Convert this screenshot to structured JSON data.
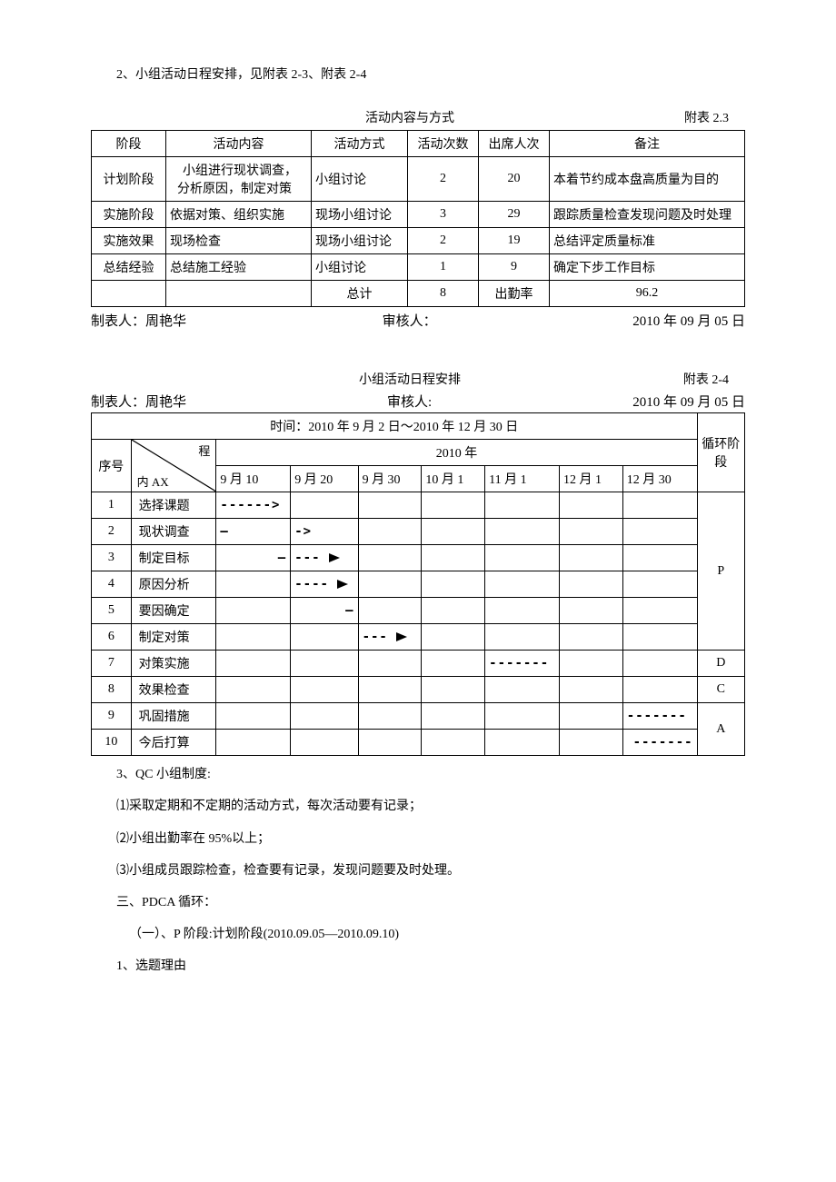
{
  "heading1": "2、小组活动日程安排，见附表 2-3、附表 2-4",
  "table1": {
    "title": "活动内容与方式",
    "annex": "附表 2.3",
    "headers": [
      "阶段",
      "活动内容",
      "活动方式",
      "活动次数",
      "出席人次",
      "备注"
    ],
    "rows": [
      {
        "stage": "计划阶段",
        "content": "小组进行现状调查，分析原因，制定对策",
        "method": "小组讨论",
        "count": "2",
        "attend": "20",
        "note": "本着节约成本盘高质量为目的"
      },
      {
        "stage": "实施阶段",
        "content": "依据对策、组织实施",
        "method": "现场小组讨论",
        "count": "3",
        "attend": "29",
        "note": "跟踪质量检查发现问题及时处理"
      },
      {
        "stage": "实施效果",
        "content": "现场检查",
        "method": "现场小组讨论",
        "count": "2",
        "attend": "19",
        "note": "总结评定质量标准"
      },
      {
        "stage": "总结经验",
        "content": "总结施工经验",
        "method": "小组讨论",
        "count": "1",
        "attend": "9",
        "note": "确定下步工作目标"
      }
    ],
    "total_label": "总计",
    "total_count": "8",
    "attend_rate_label": "出勤率",
    "attend_rate_value": "96.2"
  },
  "sig1": {
    "maker_label": "制表人：",
    "maker": "周艳华",
    "reviewer_label": "审核人：",
    "date": "2010 年 09 月 05 日"
  },
  "table2": {
    "title": "小组活动日程安排",
    "annex": "附表 2-4",
    "sig": {
      "maker_label": "制表人：",
      "maker": "周艳华",
      "reviewer_label": "审核人:",
      "date": "2010 年 09 月 05 日"
    },
    "time_row": "时间：2010 年 9 月 2 日～2010 年 12 月 30 日",
    "seq_label": "序号",
    "diag_top": "程",
    "diag_bot": "内 AX",
    "year_label": "2010 年",
    "cycle_label": "循环阶段",
    "months": [
      "9 月 10",
      "9 月 20",
      "9 月 30",
      "10 月 1",
      "11 月 1",
      "12 月 1",
      "12 月 30"
    ],
    "rows": [
      {
        "n": "1",
        "name": "选择课题",
        "cycle": "P",
        "arrows": [
          {
            "col": 0,
            "type": "dash-arrow-open"
          }
        ]
      },
      {
        "n": "2",
        "name": "现状调查",
        "cycle": "P",
        "arrows": [
          {
            "col": 0,
            "type": "solid-short"
          },
          {
            "col": 1,
            "type": "dash-arrow-open-short"
          }
        ]
      },
      {
        "n": "3",
        "name": "制定目标",
        "cycle": "P",
        "arrows": [
          {
            "col": 0,
            "type": "solid-right"
          },
          {
            "col": 1,
            "type": "dash-tri"
          }
        ]
      },
      {
        "n": "4",
        "name": "原因分析",
        "cycle": "P",
        "arrows": [
          {
            "col": 1,
            "type": "dash-tri-long"
          }
        ]
      },
      {
        "n": "5",
        "name": "要因确定",
        "cycle": "P",
        "arrows": [
          {
            "col": 1,
            "type": "solid-right2"
          }
        ]
      },
      {
        "n": "6",
        "name": "制定对策",
        "cycle": "P",
        "arrows": [
          {
            "col": 2,
            "type": "dash-tri"
          }
        ]
      },
      {
        "n": "7",
        "name": "对策实施",
        "cycle": "D",
        "arrows": [
          {
            "col": 4,
            "type": "dash-only"
          }
        ]
      },
      {
        "n": "8",
        "name": "效果检查",
        "cycle": "C",
        "arrows": []
      },
      {
        "n": "9",
        "name": "巩固措施",
        "cycle": "A",
        "arrows": [
          {
            "col": 6,
            "type": "dash-only"
          }
        ]
      },
      {
        "n": "10",
        "name": "今后打算",
        "cycle": "A",
        "arrows": [
          {
            "col": 6,
            "type": "dash-only-r"
          }
        ]
      }
    ],
    "cycle_groups": [
      {
        "label": "P",
        "span": 6
      },
      {
        "label": "D",
        "span": 1
      },
      {
        "label": "C",
        "span": 1
      },
      {
        "label": "A",
        "span": 2
      }
    ]
  },
  "body_lines": {
    "l1": "3、QC 小组制度:",
    "l2": "⑴采取定期和不定期的活动方式，每次活动要有记录；",
    "l3": "⑵小组出勤率在 95%以上；",
    "l4": "⑶小组成员跟踪检查，检查要有记录，发现问题要及时处理。",
    "l5": "三、PDCA 循环：",
    "l6": "（一）、P 阶段:计划阶段(2010.09.05—2010.09.10)",
    "l7": "1、选题理由"
  }
}
